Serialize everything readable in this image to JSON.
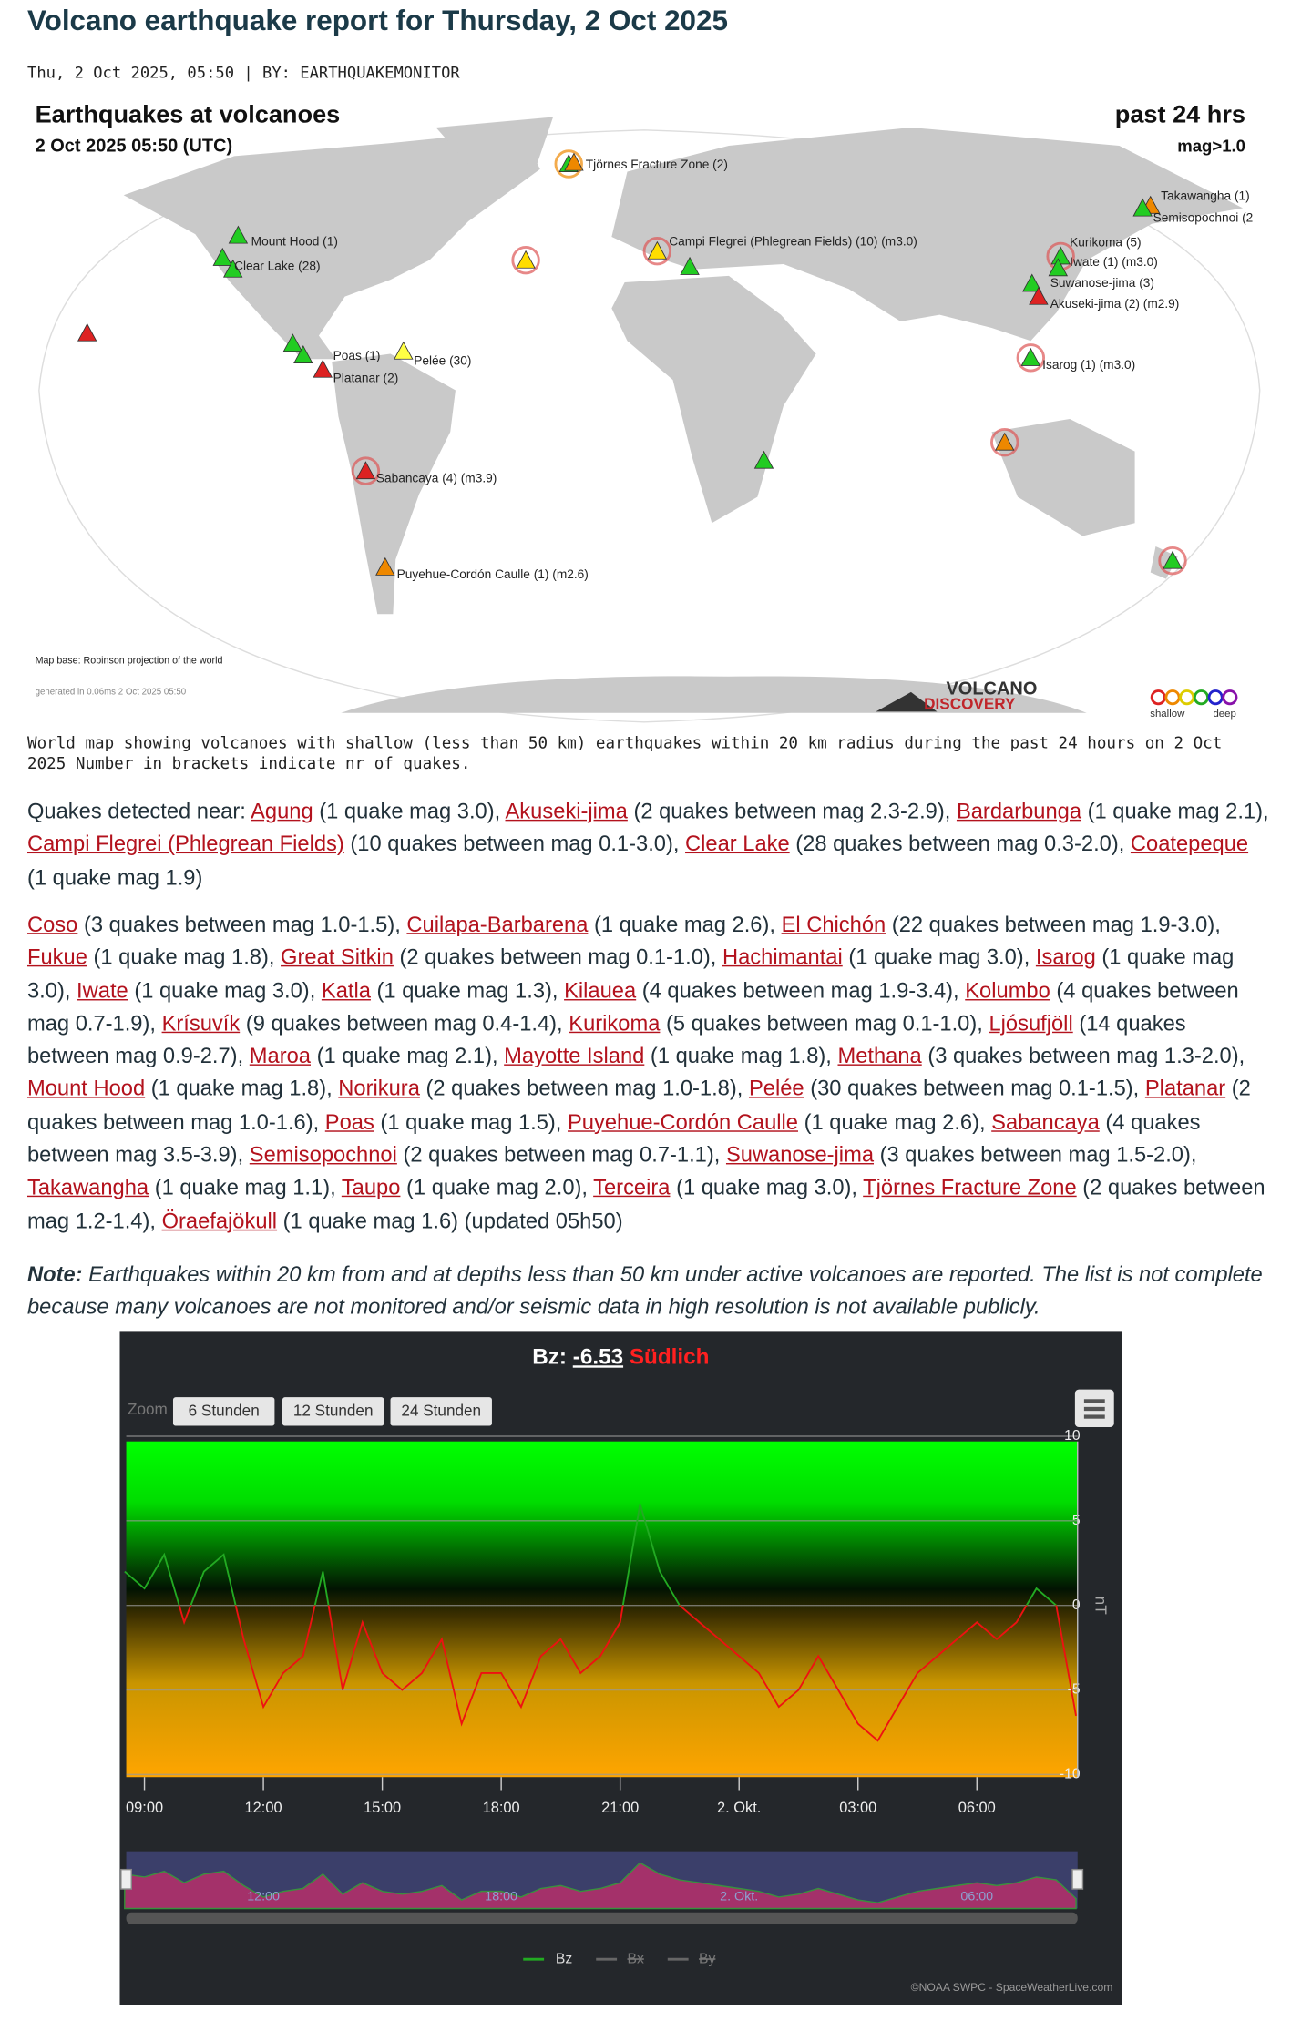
{
  "header": {
    "title": "Volcano earthquake report for Thursday, 2 Oct 2025",
    "meta": "Thu, 2 Oct 2025, 05:50 | BY: EARTHQUAKEMONITOR"
  },
  "map": {
    "title": "Earthquakes at volcanoes",
    "date": "2 Oct 2025 05:50 (UTC)",
    "period": "past 24 hrs",
    "magnitude": "mag>1.0",
    "labels": [
      "Tjörnes Fracture Zone (2)",
      "Takawangha (1)",
      "Semisopochnoi (2",
      "Mount Hood (1)",
      "Clear Lake (28)",
      "Campi Flegrei (Phlegrean Fields) (10) (m3.0)",
      "Kurikoma (5)",
      "Iwate (1) (m3.0)",
      "Suwanose-jima (3)",
      "Akuseki-jima (2) (m2.9)",
      "Poas (1)",
      "Pelée (30)",
      "Platanar (2)",
      "Isarog (1) (m3.0)",
      "Sabancaya (4) (m3.9)",
      "Puyehue-Cordón Caulle (1) (m2.6)"
    ],
    "base_note": "Map base: Robinson projection of the world",
    "generated": "generated in 0.06ms  2 Oct 2025 05:50",
    "logo_top": "VOLCANO",
    "logo_bottom": "DISCOVERY",
    "legend_shallow": "shallow",
    "legend_deep": "deep"
  },
  "caption": "World map showing volcanoes with shallow (less than 50 km) earthquakes within 20 km radius during the past 24 hours on 2 Oct 2025 Number in brackets indicate nr of quakes.",
  "quakes": {
    "intro": "Quakes detected near:",
    "first": [
      {
        "name": "Agung",
        "detail": "(1 quake mag 3.0),"
      },
      {
        "name": "Akuseki-jima",
        "detail": "(2 quakes between mag 2.3-2.9),"
      },
      {
        "name": "Bardarbunga",
        "detail": "(1 quake mag 2.1),"
      },
      {
        "name": "Campi Flegrei (Phlegrean Fields)",
        "detail": "(10 quakes between mag 0.1-3.0),"
      },
      {
        "name": "Clear Lake",
        "detail": "(28 quakes between mag 0.3-2.0),"
      },
      {
        "name": "Coatepeque",
        "detail": "(1 quake mag 1.9)"
      }
    ],
    "second": [
      {
        "name": "Coso",
        "detail": "(3 quakes between mag 1.0-1.5),"
      },
      {
        "name": "Cuilapa-Barbarena",
        "detail": "(1 quake mag 2.6),"
      },
      {
        "name": "El Chichón",
        "detail": "(22 quakes between mag 1.9-3.0),"
      },
      {
        "name": "Fukue",
        "detail": "(1 quake mag 1.8),"
      },
      {
        "name": "Great Sitkin",
        "detail": "(2 quakes between mag 0.1-1.0),"
      },
      {
        "name": "Hachimantai",
        "detail": "(1 quake mag 3.0),"
      },
      {
        "name": "Isarog",
        "detail": "(1 quake mag 3.0),"
      },
      {
        "name": "Iwate",
        "detail": "(1 quake mag 3.0),"
      },
      {
        "name": "Katla",
        "detail": "(1 quake mag 1.3),"
      },
      {
        "name": "Kilauea",
        "detail": "(4 quakes between mag 1.9-3.4),"
      },
      {
        "name": "Kolumbo",
        "detail": "(4 quakes between mag 0.7-1.9),"
      },
      {
        "name": "Krísuvík",
        "detail": "(9 quakes between mag 0.4-1.4),"
      },
      {
        "name": "Kurikoma",
        "detail": "(5 quakes between mag 0.1-1.0),"
      },
      {
        "name": "Ljósufjöll",
        "detail": "(14 quakes between mag 0.9-2.7),"
      },
      {
        "name": "Maroa",
        "detail": "(1 quake mag 2.1),"
      },
      {
        "name": "Mayotte Island",
        "detail": "(1 quake mag 1.8),"
      },
      {
        "name": "Methana",
        "detail": "(3 quakes between mag 1.3-2.0),"
      },
      {
        "name": "Mount Hood",
        "detail": "(1 quake mag 1.8),"
      },
      {
        "name": "Norikura",
        "detail": "(2 quakes between mag 1.0-1.8),"
      },
      {
        "name": "Pelée",
        "detail": "(30 quakes between mag 0.1-1.5),"
      },
      {
        "name": "Platanar",
        "detail": "(2 quakes between mag 1.0-1.6),"
      },
      {
        "name": "Poas",
        "detail": "(1 quake mag 1.5),"
      },
      {
        "name": "Puyehue-Cordón Caulle",
        "detail": "(1 quake mag 2.6),"
      },
      {
        "name": "Sabancaya",
        "detail": "(4 quakes between mag 3.5-3.9),"
      },
      {
        "name": "Semisopochnoi",
        "detail": "(2 quakes between mag 0.7-1.1),"
      },
      {
        "name": "Suwanose-jima",
        "detail": "(3 quakes between mag 1.5-2.0),"
      },
      {
        "name": "Takawangha",
        "detail": "(1 quake mag 1.1),"
      },
      {
        "name": "Taupo",
        "detail": "(1 quake mag 2.0),"
      },
      {
        "name": "Terceira",
        "detail": "(1 quake mag 3.0),"
      },
      {
        "name": "Tjörnes Fracture Zone",
        "detail": "(2 quakes between mag 1.2-1.4),"
      },
      {
        "name": "Öraefajökull",
        "detail": "(1 quake mag 1.6)"
      }
    ],
    "updated": "(updated 05h50)"
  },
  "note": {
    "label": "Note:",
    "text": "Earthquakes within 20 km from and at depths less than 50 km under active volcanoes are reported. The list is not complete because many volcanoes are not monitored and/or seismic data in high resolution is not available publicly."
  },
  "chart_data": {
    "type": "line",
    "title_label": "Bz:",
    "title_value": "-6.53",
    "title_direction": "Südlich",
    "zoom_label": "Zoom",
    "zoom_buttons": [
      "6 Stunden",
      "12 Stunden",
      "24 Stunden"
    ],
    "x": [
      "08:30",
      "09:00",
      "09:30",
      "10:00",
      "10:30",
      "11:00",
      "11:30",
      "12:00",
      "12:30",
      "13:00",
      "13:30",
      "14:00",
      "14:30",
      "15:00",
      "15:30",
      "16:00",
      "16:30",
      "17:00",
      "17:30",
      "18:00",
      "18:30",
      "19:00",
      "19:30",
      "20:00",
      "20:30",
      "21:00",
      "21:30",
      "22:00",
      "22:30",
      "23:00",
      "23:30",
      "00:00",
      "00:30",
      "01:00",
      "01:30",
      "02:00",
      "02:30",
      "03:00",
      "03:30",
      "04:00",
      "04:30",
      "05:00",
      "05:30",
      "06:00",
      "06:30",
      "07:00",
      "07:30",
      "08:00",
      "08:30"
    ],
    "series": [
      {
        "name": "Bz",
        "color": "#22aa22",
        "values": [
          2,
          1,
          3,
          -1,
          2,
          3,
          -2,
          -6,
          -4,
          -3,
          2,
          -5,
          -1,
          -4,
          -5,
          -4,
          -2,
          -7,
          -4,
          -4,
          -6,
          -3,
          -2,
          -4,
          -3,
          -1,
          6,
          2,
          0,
          -1,
          -2,
          -3,
          -4,
          -6,
          -5,
          -3,
          -5,
          -7,
          -8,
          -6,
          -4,
          -3,
          -2,
          -1,
          -2,
          -1,
          1,
          0,
          -6.53
        ]
      }
    ],
    "hidden_series": [
      "Bx",
      "By"
    ],
    "y_axis_label": "nT",
    "ylim": [
      -10,
      10
    ],
    "yticks": [
      -10,
      -5,
      0,
      5,
      10
    ],
    "xticks": [
      "09:00",
      "12:00",
      "15:00",
      "18:00",
      "21:00",
      {
        "value": "00:00",
        "label": "2. Okt."
      },
      "03:00",
      "06:00"
    ],
    "navigator_ticks": [
      "12:00",
      "18:00",
      {
        "value": "00:00",
        "label": "2. Okt."
      },
      "06:00"
    ],
    "credit": "©NOAA SWPC - SpaceWeatherLive.com",
    "grid": true
  }
}
